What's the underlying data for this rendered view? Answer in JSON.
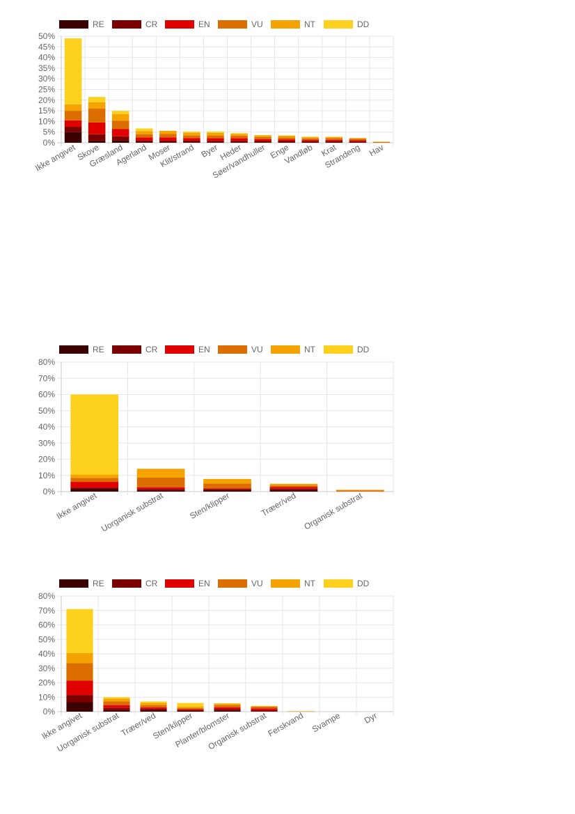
{
  "legend": [
    {
      "label": "RE",
      "color": "#3b0000"
    },
    {
      "label": "CR",
      "color": "#7d0000"
    },
    {
      "label": "EN",
      "color": "#e00000"
    },
    {
      "label": "VU",
      "color": "#dc6e00"
    },
    {
      "label": "NT",
      "color": "#f5a300"
    },
    {
      "label": "DD",
      "color": "#fdd11d"
    }
  ],
  "chart_data": [
    {
      "type": "bar",
      "stacked": true,
      "categories": [
        "Ikke angivet",
        "Skove",
        "Græsland",
        "Agerland",
        "Moser",
        "Klit/strand",
        "Byer",
        "Heder",
        "Søer/vandhuller",
        "Enge",
        "Vandløb",
        "Krat",
        "Strandeng",
        "Hav"
      ],
      "series": [
        {
          "name": "RE",
          "values": [
            5,
            1,
            1,
            0.3,
            0.3,
            0.3,
            0.3,
            0.3,
            0.3,
            0.3,
            0.3,
            0.3,
            0.3,
            0
          ]
        },
        {
          "name": "CR",
          "values": [
            2.5,
            3,
            2,
            0.8,
            0.7,
            0.7,
            0.6,
            0.6,
            0.5,
            0.5,
            0.4,
            0.4,
            0.3,
            0
          ]
        },
        {
          "name": "EN",
          "values": [
            3,
            5.5,
            3.5,
            1.4,
            1.5,
            1.2,
            1.2,
            1.2,
            0.9,
            0.8,
            0.6,
            0.7,
            0.6,
            0
          ]
        },
        {
          "name": "VU",
          "values": [
            4.5,
            6.5,
            3.8,
            1.5,
            1.6,
            1.2,
            1.3,
            1.2,
            1,
            0.9,
            0.7,
            0.7,
            0.6,
            0.4
          ]
        },
        {
          "name": "NT",
          "values": [
            3,
            3,
            3.2,
            1.5,
            1.5,
            1.3,
            1.2,
            0.9,
            0.7,
            0.8,
            0.7,
            0.6,
            0.4,
            0.1
          ]
        },
        {
          "name": "DD",
          "values": [
            31,
            2.5,
            1.5,
            1.2,
            0,
            0.5,
            0.6,
            0.3,
            0.2,
            0.1,
            0.1,
            0.1,
            0,
            0
          ]
        }
      ],
      "ylim": [
        0,
        50
      ],
      "yticks": [
        0,
        5,
        10,
        15,
        20,
        25,
        30,
        35,
        40,
        45,
        50
      ],
      "ytick_labels": [
        "0%",
        "5%",
        "10%",
        "15%",
        "20%",
        "25%",
        "30%",
        "35%",
        "40%",
        "45%",
        "50%"
      ],
      "grid": true,
      "legend_position": "top"
    },
    {
      "type": "bar",
      "stacked": true,
      "categories": [
        "Ikke angivet",
        "Uorganisk substrat",
        "Sten/klipper",
        "Træer/ved",
        "Organisk substrat"
      ],
      "series": [
        {
          "name": "RE",
          "values": [
            1.5,
            0.8,
            1,
            1,
            0
          ]
        },
        {
          "name": "CR",
          "values": [
            1,
            0.8,
            0.5,
            0.8,
            0
          ]
        },
        {
          "name": "EN",
          "values": [
            3.5,
            1,
            0.5,
            1,
            0
          ]
        },
        {
          "name": "VU",
          "values": [
            2.5,
            6,
            3,
            1,
            0.8
          ]
        },
        {
          "name": "NT",
          "values": [
            2,
            5.5,
            2.8,
            1,
            0.3
          ]
        },
        {
          "name": "DD",
          "values": [
            49.5,
            0,
            0,
            0,
            0
          ]
        }
      ],
      "ylim": [
        0,
        80
      ],
      "yticks": [
        0,
        10,
        20,
        30,
        40,
        50,
        60,
        70,
        80
      ],
      "ytick_labels": [
        "0%",
        "10%",
        "20%",
        "30%",
        "40%",
        "50%",
        "60%",
        "70%",
        "80%"
      ],
      "grid": true,
      "legend_position": "top"
    },
    {
      "type": "bar",
      "stacked": true,
      "categories": [
        "Ikke angivet",
        "Uorganisk substrat",
        "Træer/ved",
        "Sten/klipper",
        "Planter/blomster",
        "Organisk substrat",
        "Ferskvand",
        "Svampe",
        "Dyr"
      ],
      "series": [
        {
          "name": "RE",
          "values": [
            6.5,
            1,
            1,
            0.5,
            0.8,
            0.3,
            0,
            0,
            0
          ]
        },
        {
          "name": "CR",
          "values": [
            5,
            1.5,
            1,
            0.5,
            1,
            0.7,
            0,
            0,
            0
          ]
        },
        {
          "name": "EN",
          "values": [
            10,
            2,
            1,
            0.7,
            1.2,
            1.3,
            0,
            0,
            0
          ]
        },
        {
          "name": "VU",
          "values": [
            12,
            2.5,
            1.5,
            0.8,
            1.5,
            1.2,
            0.2,
            0,
            0
          ]
        },
        {
          "name": "NT",
          "values": [
            7,
            2,
            1.5,
            1,
            1,
            0.3,
            0.1,
            0,
            0
          ]
        },
        {
          "name": "DD",
          "values": [
            30.5,
            1,
            1,
            2.5,
            0.3,
            0.2,
            0,
            0,
            0
          ]
        }
      ],
      "ylim": [
        0,
        80
      ],
      "yticks": [
        0,
        10,
        20,
        30,
        40,
        50,
        60,
        70,
        80
      ],
      "ytick_labels": [
        "0%",
        "10%",
        "20%",
        "30%",
        "40%",
        "50%",
        "60%",
        "70%",
        "80%"
      ],
      "grid": true,
      "legend_position": "top"
    }
  ]
}
